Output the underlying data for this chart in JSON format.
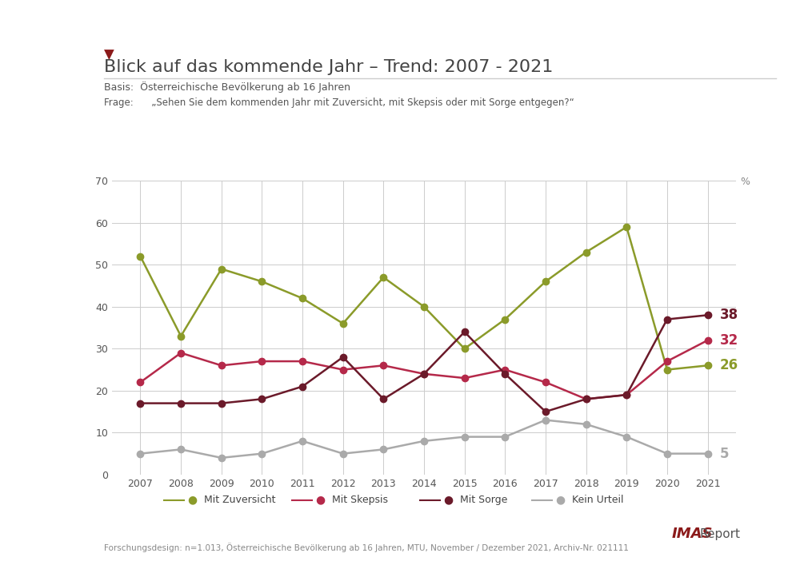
{
  "title": "Blick auf das kommende Jahr – Trend: 2007 - 2021",
  "basis": "Basis:  Österreichische Bevölkerung ab 16 Jahren",
  "frage": "Frage:      „Sehen Sie dem kommenden Jahr mit Zuversicht, mit Skepsis oder mit Sorge entgegen?“",
  "footer": "Forschungsdesign: n=1.013, Österreichische Bevölkerung ab 16 Jahren, MTU, November / Dezember 2021, Archiv-Nr. 021111",
  "years": [
    2007,
    2008,
    2009,
    2010,
    2011,
    2012,
    2013,
    2014,
    2015,
    2016,
    2017,
    2018,
    2019,
    2020,
    2021
  ],
  "mit_zuversicht": [
    52,
    33,
    49,
    46,
    42,
    36,
    47,
    40,
    30,
    37,
    46,
    53,
    59,
    25,
    26
  ],
  "mit_skepsis": [
    22,
    29,
    26,
    27,
    27,
    25,
    26,
    24,
    23,
    25,
    22,
    18,
    19,
    27,
    32
  ],
  "mit_sorge": [
    17,
    17,
    17,
    18,
    21,
    28,
    18,
    24,
    34,
    24,
    15,
    18,
    19,
    37,
    38
  ],
  "kein_urteil": [
    5,
    6,
    4,
    5,
    8,
    5,
    6,
    8,
    9,
    9,
    13,
    12,
    9,
    5,
    5
  ],
  "color_zuversicht": "#8b9b2a",
  "color_skepsis": "#b5294a",
  "color_sorge": "#6b1a2a",
  "color_kein_urteil": "#aaaaaa",
  "bg_color": "#ffffff",
  "grid_color": "#cccccc",
  "ylim": [
    0,
    70
  ],
  "yticks": [
    0,
    10,
    20,
    30,
    40,
    50,
    60,
    70
  ],
  "label_zuversicht": "Mit Zuversicht",
  "label_skepsis": "Mit Skepsis",
  "label_sorge": "Mit Sorge",
  "label_kein_urteil": "Kein Urteil",
  "end_labels": {
    "zuversicht": 26,
    "skepsis": 32,
    "sorge": 38,
    "kein_urteil": 5
  },
  "title_color": "#444444",
  "marker_size": 6,
  "line_width": 1.8
}
